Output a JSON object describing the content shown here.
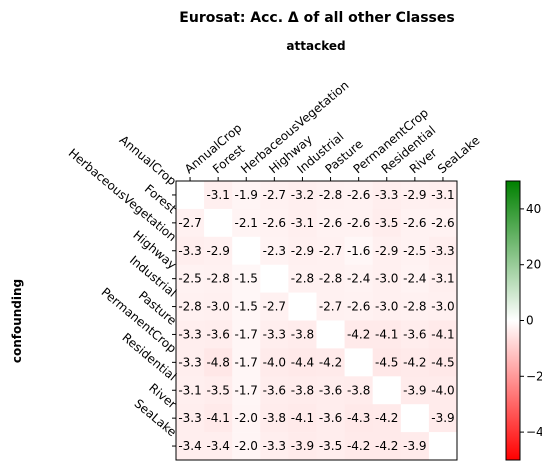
{
  "chart_data": {
    "type": "heatmap",
    "title": "Eurosat: Acc. Δ of all other Classes",
    "xlabel": "attacked",
    "ylabel": "confounding",
    "x_categories": [
      "AnnualCrop",
      "Forest",
      "HerbaceousVegetation",
      "Highway",
      "Industrial",
      "Pasture",
      "PermanentCrop",
      "Residential",
      "River",
      "SeaLake"
    ],
    "y_categories": [
      "AnnualCrop",
      "Forest",
      "HerbaceousVegetation",
      "Highway",
      "Industrial",
      "Pasture",
      "PermanentCrop",
      "Residential",
      "River",
      "SeaLake"
    ],
    "values": [
      [
        null,
        -3.1,
        -1.9,
        -2.7,
        -3.2,
        -2.8,
        -2.6,
        -3.3,
        -2.9,
        -3.1
      ],
      [
        -2.7,
        null,
        -2.1,
        -2.6,
        -3.1,
        -2.6,
        -2.6,
        -3.5,
        -2.6,
        -2.6
      ],
      [
        -3.3,
        -2.9,
        null,
        -2.3,
        -2.9,
        -2.7,
        -1.6,
        -2.9,
        -2.5,
        -3.3
      ],
      [
        -2.5,
        -2.8,
        -1.5,
        null,
        -2.8,
        -2.8,
        -2.4,
        -3.0,
        -2.4,
        -3.1
      ],
      [
        -2.8,
        -3.0,
        -1.5,
        -2.7,
        null,
        -2.7,
        -2.6,
        -3.0,
        -2.8,
        -3.0
      ],
      [
        -3.3,
        -3.6,
        -1.7,
        -3.3,
        -3.8,
        null,
        -4.2,
        -4.1,
        -3.6,
        -4.1
      ],
      [
        -3.3,
        -4.8,
        -1.7,
        -4.0,
        -4.4,
        -4.2,
        null,
        -4.5,
        -4.2,
        -4.5
      ],
      [
        -3.1,
        -3.5,
        -1.7,
        -3.6,
        -3.8,
        -3.6,
        -3.8,
        null,
        -3.9,
        -4.0
      ],
      [
        -3.3,
        -4.1,
        -2.0,
        -3.8,
        -4.1,
        -3.6,
        -4.3,
        -4.2,
        null,
        -3.9
      ],
      [
        -3.4,
        -3.4,
        -2.0,
        -3.3,
        -3.9,
        -3.5,
        -4.2,
        -4.2,
        -3.9,
        null
      ]
    ],
    "colorbar": {
      "vmin": -50,
      "vmax": 50,
      "ticks": [
        40,
        20,
        0,
        -20,
        -40
      ],
      "tick_labels": [
        "40",
        "20",
        "0",
        "−20",
        "−40"
      ],
      "colors": {
        "low": "#ff0000",
        "mid": "#ffffff",
        "high": "#008000"
      }
    }
  }
}
